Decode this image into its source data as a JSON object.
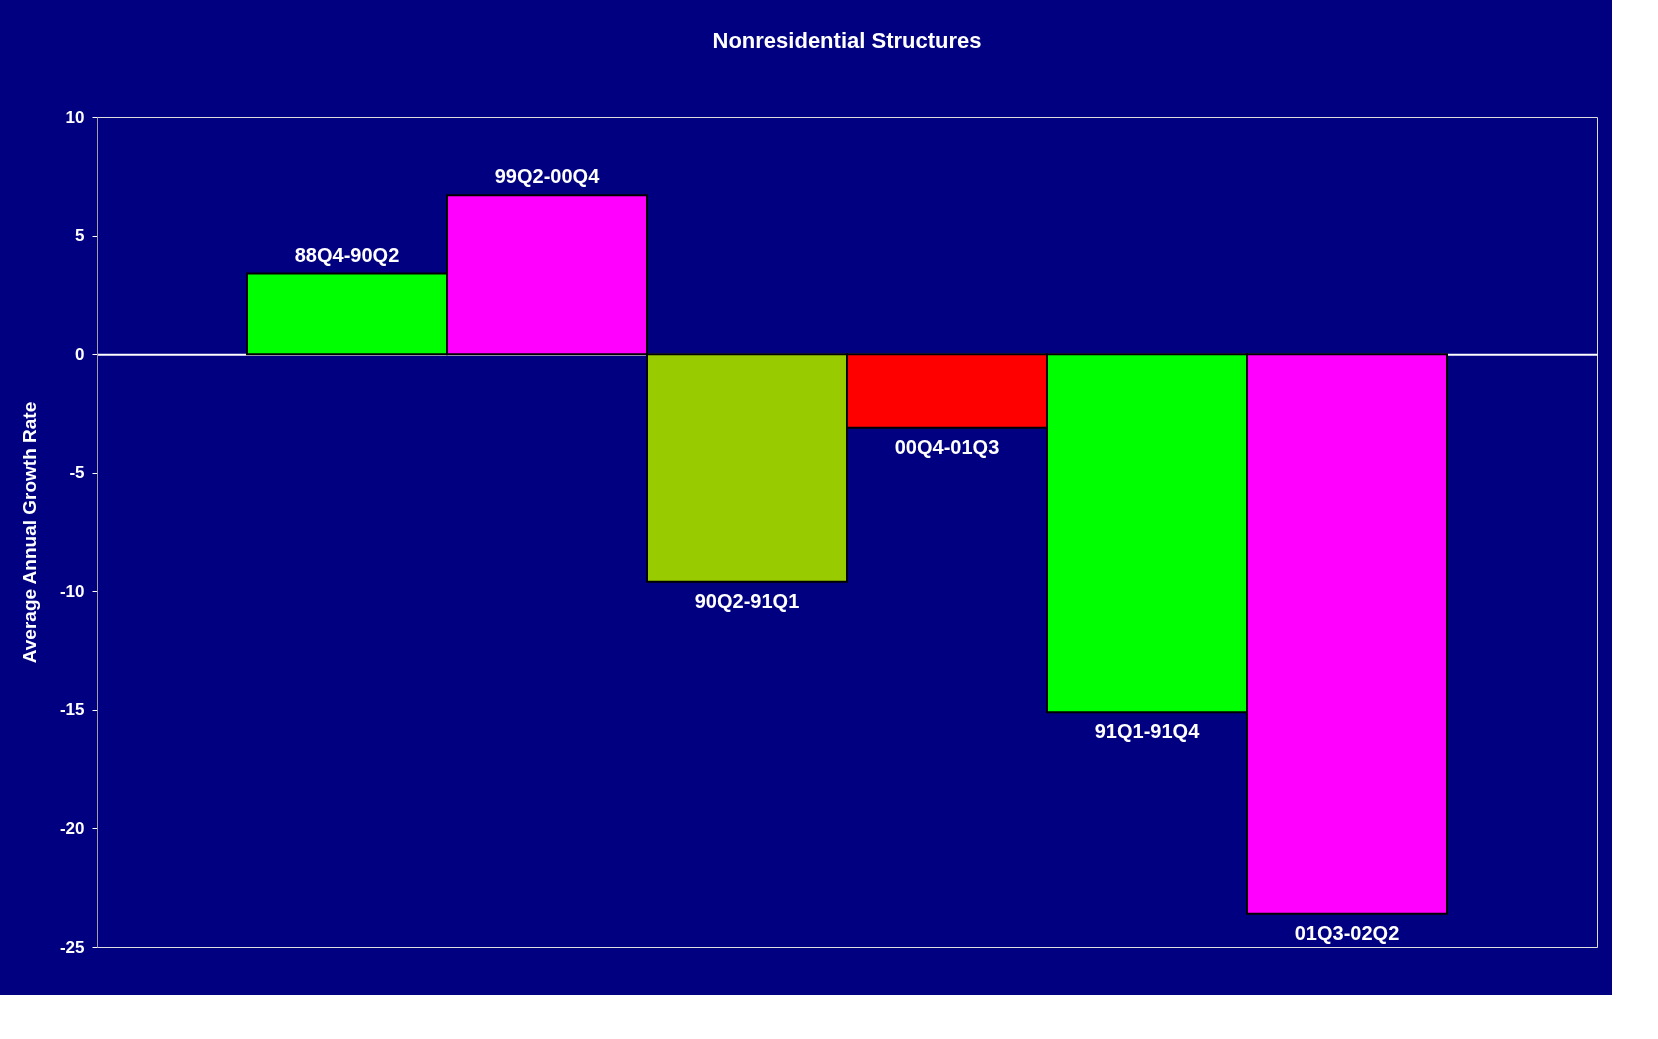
{
  "chart_data": {
    "type": "bar",
    "title": "Nonresidential Structures",
    "ylabel": "Average Annual Growth Rate",
    "categories": [
      null,
      null,
      null,
      null,
      null,
      null
    ],
    "values": [
      3.4,
      6.7,
      -9.6,
      -3.1,
      -15.1,
      -23.6
    ],
    "colors": [
      "#00ff00",
      "#ff00ff",
      "#99cc00",
      "#ff0000",
      "#00ff00",
      "#ff00ff"
    ],
    "ylim": [
      -25,
      10
    ],
    "yticks": [
      -25,
      -20,
      -15,
      -10,
      -5,
      0,
      5,
      10
    ],
    "tick_labels": "y",
    "annotations": [
      {
        "text": "88Q4-90Q2",
        "y": 3.4
      },
      {
        "text": "99Q2-00Q4",
        "y": 6.7
      },
      {
        "text": "90Q2-91Q1",
        "y": -9.6
      },
      {
        "text": "00Q4-01Q3",
        "y": -3.1
      },
      {
        "text": "91Q1-91Q4",
        "y": -15.1
      },
      {
        "text": "01Q3-02Q2",
        "y": -23.6
      }
    ]
  }
}
